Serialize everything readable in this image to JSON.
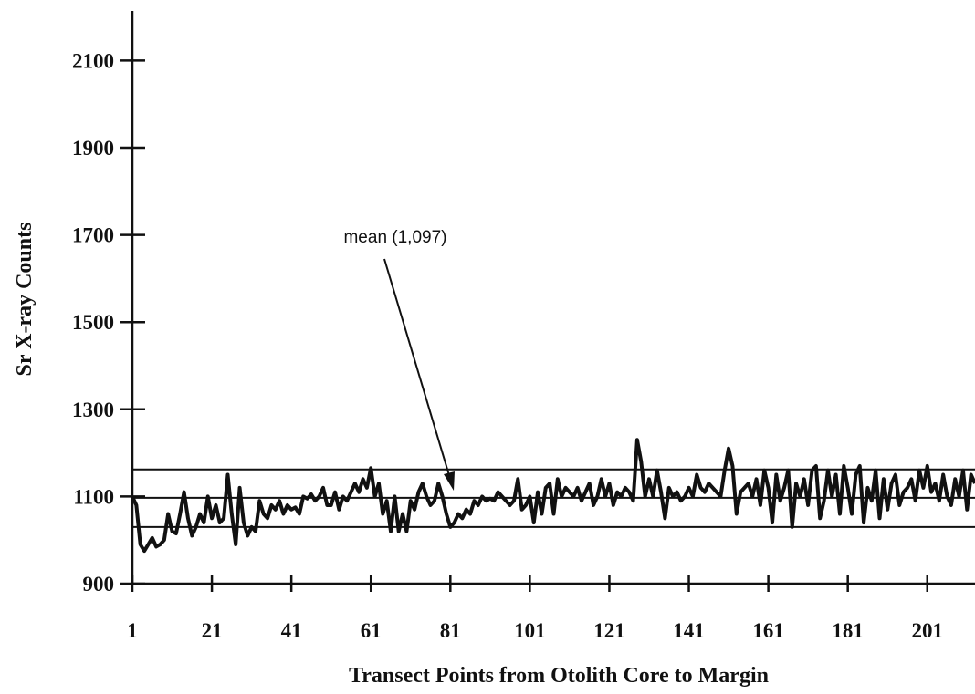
{
  "chart_data": {
    "type": "line",
    "x_label": "Transect Points from Otolith Core to Margin",
    "y_label": "Sr X-ray Counts",
    "annotation": "mean (1,097)",
    "hlines": [
      1162,
      1097,
      1030
    ],
    "color": "#111111",
    "xlim": [
      1,
      213
    ],
    "ylim": [
      900,
      2200
    ],
    "xticks": [
      1,
      21,
      41,
      61,
      81,
      101,
      121,
      141,
      161,
      181,
      201
    ],
    "yticks": [
      900,
      1100,
      1300,
      1500,
      1700,
      1900,
      2100
    ],
    "x": [
      1,
      2,
      3,
      4,
      5,
      6,
      7,
      8,
      9,
      10,
      11,
      12,
      13,
      14,
      15,
      16,
      17,
      18,
      19,
      20,
      21,
      22,
      23,
      24,
      25,
      26,
      27,
      28,
      29,
      30,
      31,
      32,
      33,
      34,
      35,
      36,
      37,
      38,
      39,
      40,
      41,
      42,
      43,
      44,
      45,
      46,
      47,
      48,
      49,
      50,
      51,
      52,
      53,
      54,
      55,
      56,
      57,
      58,
      59,
      60,
      61,
      62,
      63,
      64,
      65,
      66,
      67,
      68,
      69,
      70,
      71,
      72,
      73,
      74,
      75,
      76,
      77,
      78,
      79,
      80,
      81,
      82,
      83,
      84,
      85,
      86,
      87,
      88,
      89,
      90,
      91,
      92,
      93,
      94,
      95,
      96,
      97,
      98,
      99,
      100,
      101,
      102,
      103,
      104,
      105,
      106,
      107,
      108,
      109,
      110,
      111,
      112,
      113,
      114,
      115,
      116,
      117,
      118,
      119,
      120,
      121,
      122,
      123,
      124,
      125,
      126,
      127,
      128,
      129,
      130,
      131,
      132,
      133,
      134,
      135,
      136,
      137,
      138,
      139,
      140,
      141,
      142,
      143,
      144,
      145,
      146,
      147,
      148,
      149,
      150,
      151,
      152,
      153,
      154,
      155,
      156,
      157,
      158,
      159,
      160,
      161,
      162,
      163,
      164,
      165,
      166,
      167,
      168,
      169,
      170,
      171,
      172,
      173,
      174,
      175,
      176,
      177,
      178,
      179,
      180,
      181,
      182,
      183,
      184,
      185,
      186,
      187,
      188,
      189,
      190,
      191,
      192,
      193,
      194,
      195,
      196,
      197,
      198,
      199,
      200,
      201,
      202,
      203,
      204,
      205,
      206,
      207,
      208,
      209,
      210,
      211,
      212,
      213
    ],
    "values": [
      1100,
      1080,
      990,
      975,
      990,
      1005,
      985,
      990,
      1000,
      1060,
      1020,
      1015,
      1060,
      1110,
      1050,
      1010,
      1030,
      1060,
      1040,
      1100,
      1050,
      1080,
      1040,
      1050,
      1150,
      1060,
      990,
      1120,
      1040,
      1010,
      1030,
      1020,
      1090,
      1060,
      1050,
      1080,
      1070,
      1090,
      1060,
      1080,
      1070,
      1075,
      1060,
      1100,
      1095,
      1105,
      1090,
      1100,
      1120,
      1080,
      1080,
      1110,
      1070,
      1100,
      1090,
      1110,
      1130,
      1110,
      1140,
      1120,
      1165,
      1100,
      1130,
      1060,
      1090,
      1020,
      1100,
      1020,
      1060,
      1020,
      1090,
      1070,
      1110,
      1130,
      1100,
      1080,
      1090,
      1130,
      1100,
      1060,
      1030,
      1040,
      1060,
      1050,
      1070,
      1060,
      1090,
      1080,
      1100,
      1090,
      1095,
      1090,
      1110,
      1100,
      1090,
      1080,
      1090,
      1140,
      1070,
      1080,
      1100,
      1040,
      1110,
      1060,
      1120,
      1130,
      1060,
      1140,
      1100,
      1120,
      1110,
      1100,
      1120,
      1090,
      1110,
      1130,
      1080,
      1100,
      1140,
      1100,
      1130,
      1080,
      1110,
      1100,
      1120,
      1110,
      1090,
      1230,
      1180,
      1100,
      1140,
      1100,
      1160,
      1110,
      1050,
      1120,
      1100,
      1110,
      1090,
      1100,
      1120,
      1100,
      1150,
      1120,
      1110,
      1130,
      1120,
      1110,
      1100,
      1160,
      1210,
      1170,
      1060,
      1110,
      1120,
      1130,
      1100,
      1140,
      1080,
      1160,
      1120,
      1040,
      1150,
      1090,
      1120,
      1160,
      1030,
      1130,
      1100,
      1140,
      1080,
      1160,
      1170,
      1050,
      1090,
      1160,
      1100,
      1150,
      1060,
      1170,
      1120,
      1060,
      1150,
      1170,
      1040,
      1120,
      1090,
      1160,
      1050,
      1140,
      1070,
      1130,
      1150,
      1080,
      1110,
      1120,
      1140,
      1090,
      1160,
      1120,
      1170,
      1110,
      1130,
      1090,
      1150,
      1100,
      1080,
      1140,
      1100,
      1160,
      1070,
      1150,
      1130
    ]
  }
}
